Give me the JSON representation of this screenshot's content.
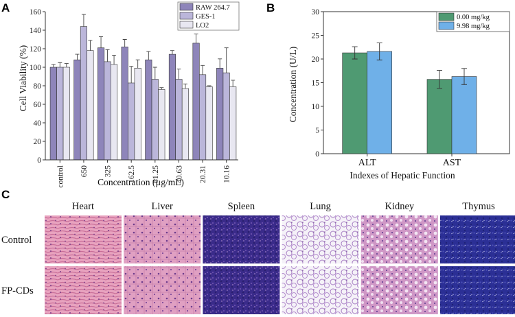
{
  "panels": {
    "a": "A",
    "b": "B",
    "c": "C"
  },
  "colors": {
    "raw": "#8e85ba",
    "ges": "#bbb6da",
    "lo2": "#e8e7f1",
    "dose0": "#4f9a72",
    "dose1": "#6fb0e8",
    "edge": "#333333"
  },
  "chart_data": [
    {
      "type": "bar",
      "title": "",
      "xlabel": "Concentration (µg/mL)",
      "ylabel": "Cell Viability (%)",
      "ylim": [
        0,
        160
      ],
      "yticks": [
        "0",
        "20",
        "40",
        "60",
        "80",
        "100",
        "120",
        "140",
        "160"
      ],
      "categories": [
        "control",
        "650",
        "325",
        "162.5",
        "81.25",
        "40.63",
        "20.31",
        "10.16"
      ],
      "legend_position": "top-right",
      "series": [
        {
          "name": "RAW 264.7",
          "values": [
            100,
            108,
            121,
            122,
            108,
            114,
            126,
            99
          ],
          "errors": [
            3,
            6,
            12,
            8,
            9,
            4,
            10,
            10
          ]
        },
        {
          "name": "GES-1",
          "values": [
            100,
            144,
            106,
            83,
            87,
            87,
            92,
            94
          ],
          "errors": [
            5,
            13,
            13,
            18,
            13,
            11,
            10,
            27
          ]
        },
        {
          "name": "LO2",
          "values": [
            100,
            118,
            103,
            99,
            76,
            77,
            79,
            79
          ],
          "errors": [
            4,
            11,
            10,
            9,
            2,
            5,
            1,
            7
          ]
        }
      ]
    },
    {
      "type": "bar",
      "title": "",
      "xlabel": "Indexes of Hepatic Function",
      "ylabel": "Concentration (U/L)",
      "ylim": [
        0,
        30
      ],
      "yticks": [
        "0",
        "5",
        "10",
        "15",
        "20",
        "25",
        "30"
      ],
      "categories": [
        "ALT",
        "AST"
      ],
      "legend_position": "top-right",
      "series": [
        {
          "name": "0.00 mg/kg",
          "values": [
            21.3,
            15.7
          ],
          "errors": [
            1.3,
            1.9
          ]
        },
        {
          "name": "9.98 mg/kg",
          "values": [
            21.6,
            16.3
          ],
          "errors": [
            1.8,
            1.7
          ]
        }
      ]
    }
  ],
  "histology": {
    "columns": [
      "Heart",
      "Liver",
      "Spleen",
      "Lung",
      "Kidney",
      "Thymus"
    ],
    "rows": [
      "Control",
      "FP-CDs"
    ]
  }
}
